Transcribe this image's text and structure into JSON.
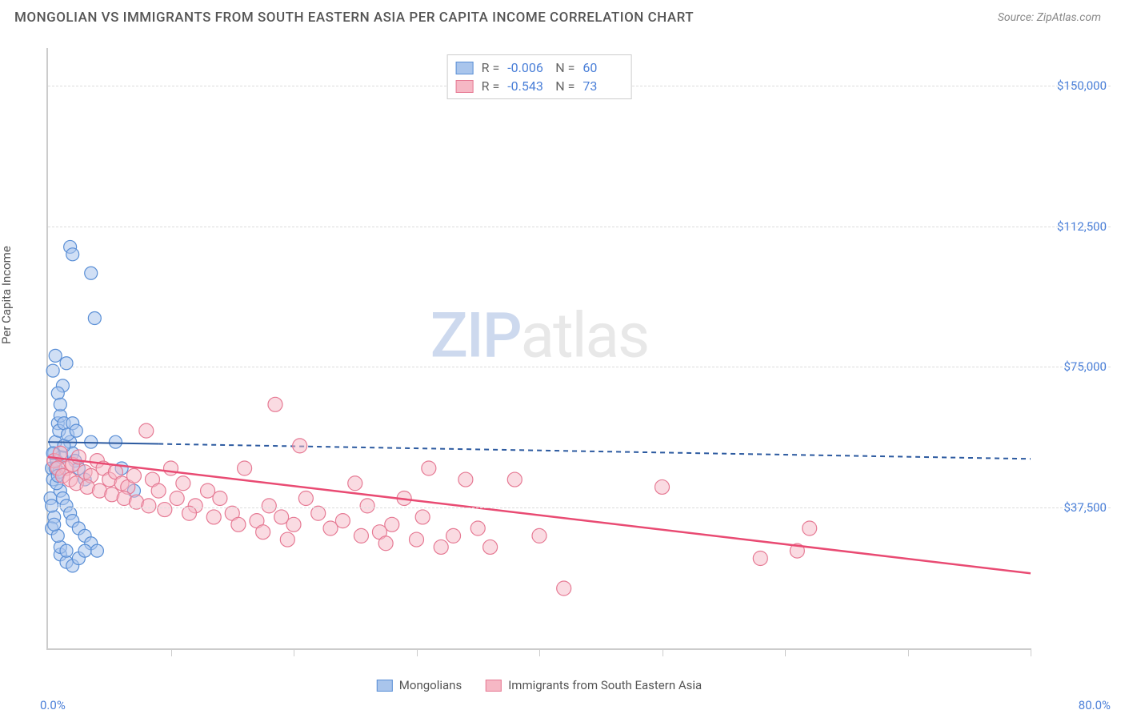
{
  "header": {
    "title": "MONGOLIAN VS IMMIGRANTS FROM SOUTH EASTERN ASIA PER CAPITA INCOME CORRELATION CHART",
    "source": "Source: ZipAtlas.com"
  },
  "watermark": {
    "zip": "ZIP",
    "atlas": "atlas"
  },
  "chart": {
    "type": "scatter",
    "ylabel": "Per Capita Income",
    "x_domain": [
      0,
      80
    ],
    "y_domain": [
      0,
      160000
    ],
    "x_tick_label_min": "0.0%",
    "x_tick_label_max": "80.0%",
    "x_ticks_at": [
      0,
      10,
      20,
      30,
      40,
      50,
      60,
      70,
      80
    ],
    "y_gridlines": [
      37500,
      75000,
      112500,
      150000
    ],
    "y_tick_labels": [
      "$37,500",
      "$75,000",
      "$112,500",
      "$150,000"
    ],
    "background_color": "#ffffff",
    "grid_color": "#dddddd",
    "axis_color": "#cccccc",
    "tick_label_color": "#4a7fd8",
    "series": [
      {
        "key": "mongolians",
        "label": "Mongolians",
        "fill": "#a9c5ec",
        "stroke": "#5a8fd6",
        "fill_opacity": 0.55,
        "marker_radius": 8,
        "r_value": "-0.006",
        "n_value": "60",
        "trend": {
          "x1": 0,
          "y1": 55000,
          "x2": 80,
          "y2": 50500,
          "solid_until_x": 9,
          "stroke": "#2c5aa0",
          "width": 2
        },
        "points": [
          [
            0.3,
            48000
          ],
          [
            0.5,
            52000
          ],
          [
            0.6,
            55000
          ],
          [
            0.8,
            60000
          ],
          [
            0.4,
            45000
          ],
          [
            0.7,
            50000
          ],
          [
            0.2,
            40000
          ],
          [
            0.5,
            35000
          ],
          [
            0.3,
            32000
          ],
          [
            0.9,
            58000
          ],
          [
            1.0,
            62000
          ],
          [
            1.2,
            70000
          ],
          [
            1.5,
            76000
          ],
          [
            0.6,
            78000
          ],
          [
            0.4,
            74000
          ],
          [
            0.8,
            68000
          ],
          [
            1.0,
            65000
          ],
          [
            1.3,
            60000
          ],
          [
            1.8,
            55000
          ],
          [
            2.0,
            52000
          ],
          [
            2.2,
            50000
          ],
          [
            2.5,
            48000
          ],
          [
            3.0,
            45000
          ],
          [
            3.5,
            55000
          ],
          [
            1.0,
            42000
          ],
          [
            1.2,
            40000
          ],
          [
            1.5,
            38000
          ],
          [
            1.8,
            36000
          ],
          [
            2.0,
            34000
          ],
          [
            2.5,
            32000
          ],
          [
            3.0,
            30000
          ],
          [
            3.5,
            28000
          ],
          [
            4.0,
            26000
          ],
          [
            1.0,
            25000
          ],
          [
            1.5,
            23000
          ],
          [
            2.0,
            22000
          ],
          [
            2.5,
            24000
          ],
          [
            3.0,
            26000
          ],
          [
            1.8,
            107000
          ],
          [
            2.0,
            105000
          ],
          [
            3.5,
            100000
          ],
          [
            3.8,
            88000
          ],
          [
            5.5,
            55000
          ],
          [
            6.0,
            48000
          ],
          [
            7.0,
            42000
          ],
          [
            1.0,
            27000
          ],
          [
            1.5,
            26000
          ],
          [
            0.8,
            30000
          ],
          [
            0.5,
            33000
          ],
          [
            0.3,
            38000
          ],
          [
            0.7,
            44000
          ],
          [
            0.9,
            47000
          ],
          [
            1.1,
            51000
          ],
          [
            1.3,
            54000
          ],
          [
            1.6,
            57000
          ],
          [
            2.0,
            60000
          ],
          [
            2.3,
            58000
          ],
          [
            0.4,
            52000
          ],
          [
            0.6,
            48000
          ],
          [
            0.8,
            46000
          ]
        ]
      },
      {
        "key": "immigrants",
        "label": "Immigrants from South Eastern Asia",
        "fill": "#f6b8c5",
        "stroke": "#e67a94",
        "fill_opacity": 0.5,
        "marker_radius": 9,
        "r_value": "-0.543",
        "n_value": "73",
        "trend": {
          "x1": 0,
          "y1": 51000,
          "x2": 80,
          "y2": 20000,
          "stroke": "#e94b73",
          "width": 2.5
        },
        "points": [
          [
            0.5,
            50000
          ],
          [
            1.0,
            52000
          ],
          [
            1.5,
            48000
          ],
          [
            2.0,
            49000
          ],
          [
            2.5,
            51000
          ],
          [
            3.0,
            47000
          ],
          [
            3.5,
            46000
          ],
          [
            4.0,
            50000
          ],
          [
            4.5,
            48000
          ],
          [
            5.0,
            45000
          ],
          [
            5.5,
            47000
          ],
          [
            6.0,
            44000
          ],
          [
            6.5,
            43000
          ],
          [
            7.0,
            46000
          ],
          [
            8.0,
            58000
          ],
          [
            8.5,
            45000
          ],
          [
            9.0,
            42000
          ],
          [
            10.0,
            48000
          ],
          [
            10.5,
            40000
          ],
          [
            11.0,
            44000
          ],
          [
            12.0,
            38000
          ],
          [
            13.0,
            42000
          ],
          [
            14.0,
            40000
          ],
          [
            15.0,
            36000
          ],
          [
            16.0,
            48000
          ],
          [
            17.0,
            34000
          ],
          [
            18.0,
            38000
          ],
          [
            18.5,
            65000
          ],
          [
            19.0,
            35000
          ],
          [
            20.5,
            54000
          ],
          [
            20.0,
            33000
          ],
          [
            21.0,
            40000
          ],
          [
            22.0,
            36000
          ],
          [
            23.0,
            32000
          ],
          [
            24.0,
            34000
          ],
          [
            25.0,
            44000
          ],
          [
            25.5,
            30000
          ],
          [
            26.0,
            38000
          ],
          [
            27.0,
            31000
          ],
          [
            27.5,
            28000
          ],
          [
            28.0,
            33000
          ],
          [
            29.0,
            40000
          ],
          [
            30.0,
            29000
          ],
          [
            30.5,
            35000
          ],
          [
            31.0,
            48000
          ],
          [
            32.0,
            27000
          ],
          [
            33.0,
            30000
          ],
          [
            34.0,
            45000
          ],
          [
            35.0,
            32000
          ],
          [
            36.0,
            27000
          ],
          [
            38.0,
            45000
          ],
          [
            40.0,
            30000
          ],
          [
            42.0,
            16000
          ],
          [
            50.0,
            43000
          ],
          [
            62.0,
            32000
          ],
          [
            58.0,
            24000
          ],
          [
            61.0,
            26000
          ],
          [
            0.8,
            48000
          ],
          [
            1.2,
            46000
          ],
          [
            1.8,
            45000
          ],
          [
            2.3,
            44000
          ],
          [
            3.2,
            43000
          ],
          [
            4.2,
            42000
          ],
          [
            5.2,
            41000
          ],
          [
            6.2,
            40000
          ],
          [
            7.2,
            39000
          ],
          [
            8.2,
            38000
          ],
          [
            9.5,
            37000
          ],
          [
            11.5,
            36000
          ],
          [
            13.5,
            35000
          ],
          [
            15.5,
            33000
          ],
          [
            17.5,
            31000
          ],
          [
            19.5,
            29000
          ]
        ]
      }
    ],
    "legend_top": {
      "r_label": "R =",
      "n_label": "N ="
    }
  }
}
